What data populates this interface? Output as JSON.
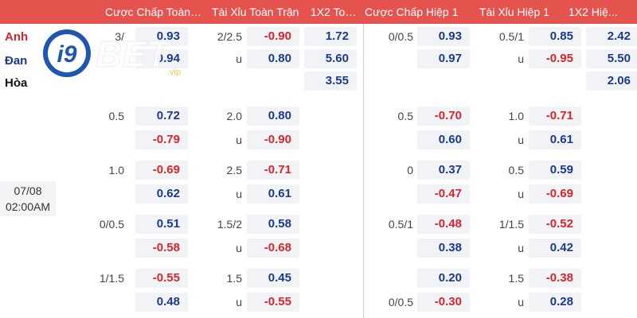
{
  "header": {
    "cols": [
      "Cược Chấp Toàn ...",
      "Tài Xỉu Toàn Trận",
      "1X2 Toà...",
      "Cược Chấp Hiệp 1",
      "Tài Xỉu Hiệp 1",
      "1X2 Hiệ..."
    ]
  },
  "teams": {
    "home": "Anh",
    "away": "Đan",
    "draw": "Hòa"
  },
  "match": {
    "date": "07/08",
    "time": "02:00AM"
  },
  "logo": {
    "text": "i9",
    "text2": "BET",
    "suffix": ".vip"
  },
  "colors": {
    "header_bg": "#e5534f",
    "positive": "#1a3a8c",
    "negative": "#d6262b",
    "cell_bg": "#f1f3f6"
  },
  "row0": {
    "ft_hcap": "3/",
    "ft_home": "0.93",
    "ft_away": "0.94",
    "ft_ou": "2/2.5",
    "ft_over": "-0.90",
    "ft_u": "u",
    "ft_under": "0.80",
    "ft_1": "1.72",
    "ft_2": "5.60",
    "ft_x": "3.55",
    "h1_hcap": "0/0.5",
    "h1_home": "0.93",
    "h1_away": "0.97",
    "h1_ou": "0.5/1",
    "h1_over": "0.85",
    "h1_u": "u",
    "h1_under": "-0.95",
    "h1_1": "2.42",
    "h1_2": "5.50",
    "h1_x": "2.06"
  },
  "rows": [
    {
      "ft_hcap": "0.5",
      "ft_home": "0.72",
      "ft_away": "-0.79",
      "ft_ou": "2.0",
      "ft_over": "0.80",
      "ft_u": "u",
      "ft_under": "-0.90",
      "h1_hcap": "0.5",
      "h1_home": "-0.70",
      "h1_away": "0.60",
      "h1_ou": "1.0",
      "h1_over": "-0.71",
      "h1_u": "u",
      "h1_under": "0.61"
    },
    {
      "ft_hcap": "1.0",
      "ft_home": "-0.69",
      "ft_away": "0.62",
      "ft_ou": "2.5",
      "ft_over": "-0.71",
      "ft_u": "u",
      "ft_under": "0.61",
      "h1_hcap": "0",
      "h1_home": "0.37",
      "h1_away": "-0.47",
      "h1_ou": "0.5",
      "h1_over": "0.59",
      "h1_u": "u",
      "h1_under": "-0.69"
    },
    {
      "ft_hcap": "0/0.5",
      "ft_home": "0.51",
      "ft_away": "-0.58",
      "ft_ou": "1.5/2",
      "ft_over": "0.58",
      "ft_u": "u",
      "ft_under": "-0.68",
      "h1_hcap": "0.5/1",
      "h1_home": "-0.48",
      "h1_away": "0.38",
      "h1_ou": "1/1.5",
      "h1_over": "-0.52",
      "h1_u": "u",
      "h1_under": "0.42"
    },
    {
      "ft_hcap": "1/1.5",
      "ft_home": "-0.55",
      "ft_away": "0.48",
      "ft_ou": "1.5",
      "ft_over": "0.45",
      "ft_u": "u",
      "ft_under": "-0.55",
      "h1_hcap": "",
      "h1_hcap2": "0/0.5",
      "h1_home": "0.20",
      "h1_away": "-0.30",
      "h1_ou": "1.5",
      "h1_over": "-0.38",
      "h1_u": "u",
      "h1_under": "0.28"
    }
  ]
}
